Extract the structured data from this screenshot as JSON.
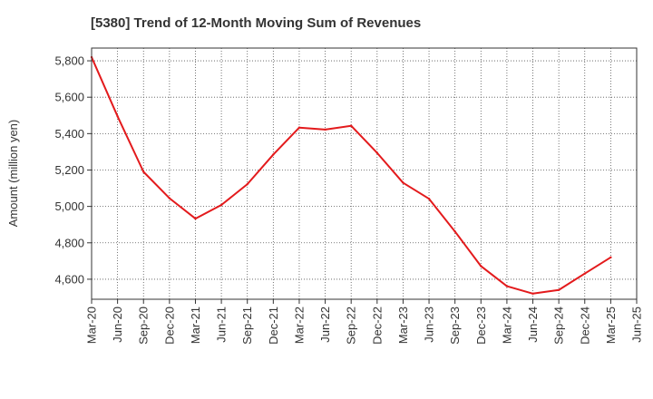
{
  "chart_data": {
    "type": "line",
    "title": "[5380]  Trend of 12-Month Moving Sum of Revenues",
    "xlabel": "",
    "ylabel": "Amount (million yen)",
    "x": [
      "Mar-20",
      "Jun-20",
      "Sep-20",
      "Dec-20",
      "Mar-21",
      "Jun-21",
      "Sep-21",
      "Dec-21",
      "Mar-22",
      "Jun-22",
      "Sep-22",
      "Dec-22",
      "Mar-23",
      "Jun-23",
      "Sep-23",
      "Dec-23",
      "Mar-24",
      "Jun-24",
      "Sep-24",
      "Dec-24",
      "Mar-25",
      "Jun-25"
    ],
    "y_ticks": [
      "4,600",
      "4,800",
      "5,000",
      "5,200",
      "5,400",
      "5,600",
      "5,800"
    ],
    "ylim": [
      4490,
      5870
    ],
    "grid": true,
    "series": [
      {
        "color": "#e31a1c",
        "values": [
          5820,
          5495,
          5190,
          5045,
          4933,
          5008,
          5122,
          5285,
          5433,
          5422,
          5443,
          5294,
          5130,
          5042,
          4862,
          4672,
          4562,
          4521,
          4541,
          4631,
          4720,
          null
        ]
      }
    ]
  }
}
